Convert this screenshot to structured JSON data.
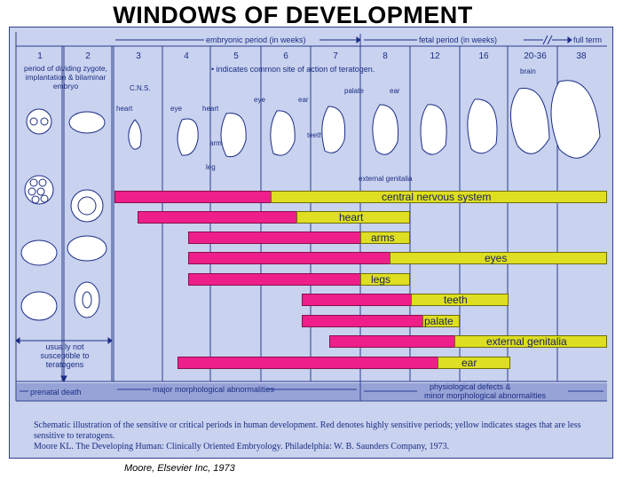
{
  "title": "WINDOWS OF DEVELOPMENT",
  "periods": {
    "embryonic": "embryonic period (in weeks)",
    "fetal": "fetal period (in weeks)",
    "full_term": "full term"
  },
  "weeks": [
    "1",
    "2",
    "3",
    "4",
    "5",
    "6",
    "7",
    "8",
    "12",
    "16",
    "20-36",
    "38"
  ],
  "week1_text": "period of dividing zygote, implantation & bilaminar embryo",
  "note": "• indicates common site of action of teratogen.",
  "embryo_labels": {
    "cns": "C.N.S.",
    "heart3": "heart",
    "eye4": "eye",
    "heart4": "heart",
    "arm": "arm",
    "leg": "leg",
    "eye6": "eye",
    "ear": "ear",
    "teeth": "teeth",
    "palate": "palate",
    "ear8": "ear",
    "external_genitalia": "external genitalia",
    "brain": "brain"
  },
  "bars": [
    {
      "label": "central nervous system"
    },
    {
      "label": "heart"
    },
    {
      "label": "arms"
    },
    {
      "label": "eyes"
    },
    {
      "label": "legs"
    },
    {
      "label": "teeth"
    },
    {
      "label": "palate"
    },
    {
      "label": "external genitalia"
    },
    {
      "label": "ear"
    }
  ],
  "left_note": "usually not susceptible to teratogens",
  "bands": {
    "prenatal_death": "prenatal death",
    "major": "major morphological abnormalities",
    "physiological": "physiological defects &",
    "minor": "minor morphological abnormalities"
  },
  "caption": {
    "line1": "Schematic illustration of the sensitive or critical periods in human development. Red denotes highly sensitive periods; yellow indicates stages that are less sensitive to teratogens.",
    "line2": "Moore KL. The Developing Human: Clinically Oriented Embryology. Philadelphia: W. B. Saunders Company, 1973."
  },
  "credit": "Moore, Elsevier Inc, 1973",
  "colors": {
    "highly_sensitive": "#ee1f8a",
    "less_sensitive": "#dede22",
    "background": "#c9d2ee",
    "ink": "#1b2d86"
  }
}
